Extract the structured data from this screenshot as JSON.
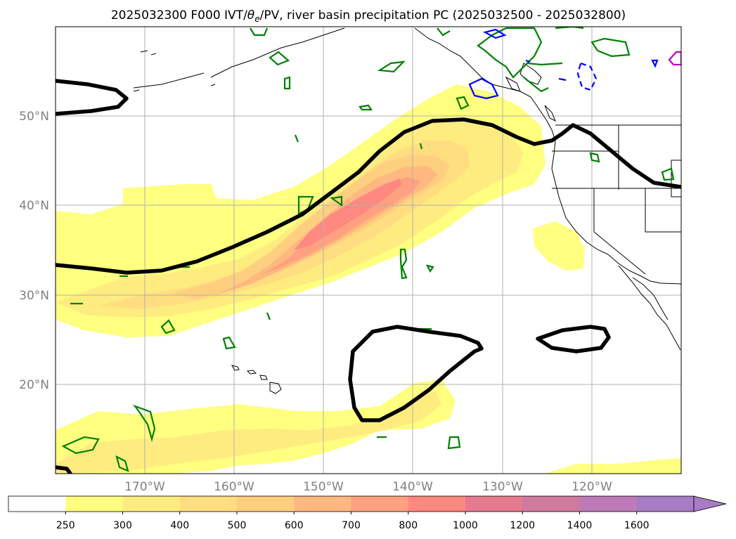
{
  "figure": {
    "title_prefix": "2025032300 F000 IVT/",
    "title_theta": "θ",
    "title_sub": "e",
    "title_suffix": "/PV, river basin precipitation PC (2025032500 - 2025032800)"
  },
  "axes": {
    "latitude_labels": [
      "50°N",
      "40°N",
      "30°N",
      "20°N"
    ],
    "longitude_labels": [
      "170°W",
      "160°W",
      "150°W",
      "140°W",
      "130°W",
      "120°W"
    ],
    "gridlines": true
  },
  "colorbar": {
    "ticks": [
      "250",
      "300",
      "400",
      "500",
      "600",
      "700",
      "800",
      "1000",
      "1200",
      "1400",
      "1600"
    ],
    "colors": [
      "#ffffff",
      "#ffff80",
      "#ffec80",
      "#ffdd80",
      "#ffcf80",
      "#ffb880",
      "#ffa080",
      "#ff8880",
      "#e57a8f",
      "#d07a9f",
      "#bd7ab8",
      "#a77cc4"
    ],
    "extend": "max"
  },
  "colors": {
    "pv_contour": "#000000",
    "precip_positive": "#008000",
    "precip_negative": "#0000ff",
    "precip_extreme": "#c000c0",
    "coastline": "#000000",
    "grid": "#b0b0b0"
  }
}
